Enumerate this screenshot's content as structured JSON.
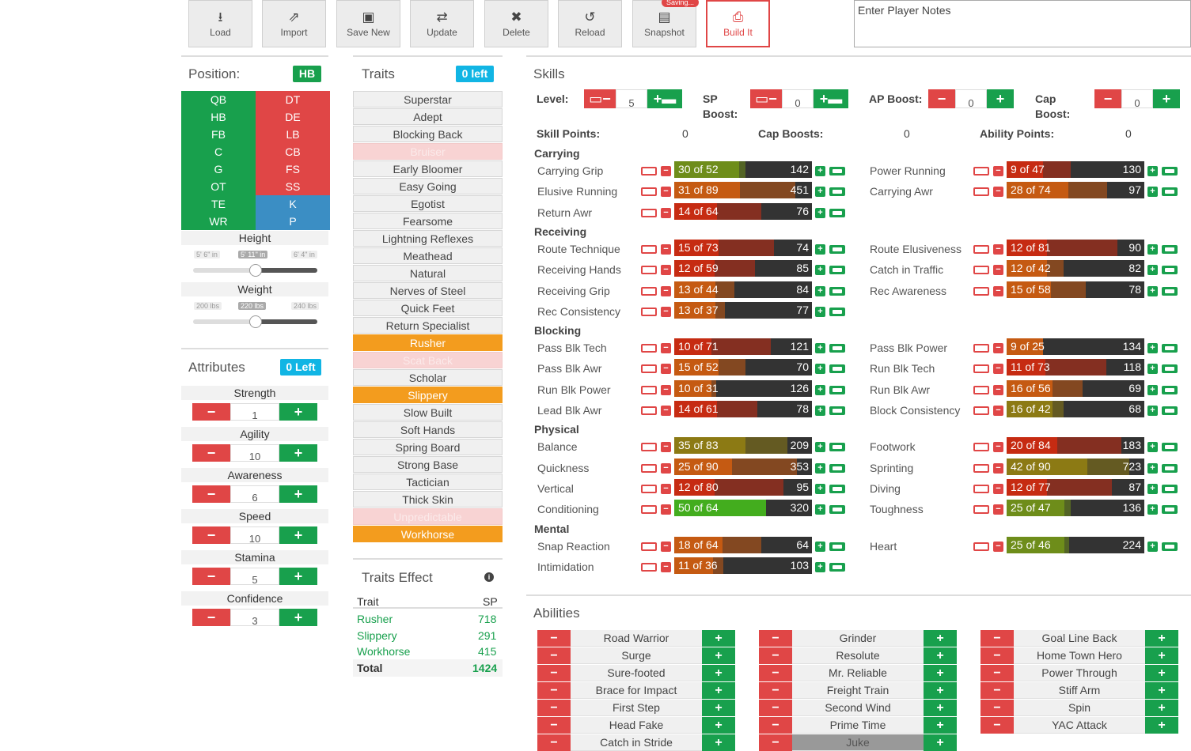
{
  "toolbar": [
    {
      "label": "Load",
      "icon": "download-icon",
      "glyph": "⭳"
    },
    {
      "label": "Import",
      "icon": "share-icon",
      "glyph": "⇗"
    },
    {
      "label": "Save New",
      "icon": "floppy-icon",
      "glyph": "▣"
    },
    {
      "label": "Update",
      "icon": "exchange-icon",
      "glyph": "⇄"
    },
    {
      "label": "Delete",
      "icon": "x-icon",
      "glyph": "✖"
    },
    {
      "label": "Reload",
      "icon": "undo-icon",
      "glyph": "↺"
    },
    {
      "label": "Snapshot",
      "icon": "image-file-icon",
      "glyph": "▤",
      "badge": "Saving..."
    },
    {
      "label": "Build It",
      "icon": "print-icon",
      "glyph": "⎙",
      "active": true
    }
  ],
  "notes": {
    "placeholder": "Enter Player Notes"
  },
  "position": {
    "title": "Position:",
    "selected": "HB",
    "offense": [
      "QB",
      "HB",
      "FB",
      "C",
      "G",
      "OT",
      "TE",
      "WR"
    ],
    "defense": [
      "DT",
      "DE",
      "LB",
      "CB",
      "FS",
      "SS",
      "K",
      "P"
    ],
    "defense_colors": [
      "red",
      "red",
      "red",
      "red",
      "red",
      "red",
      "blue",
      "blue"
    ]
  },
  "height": {
    "label": "Height",
    "ticks": [
      "5' 6\" in",
      "5' 11\" in",
      "6' 4\" in"
    ],
    "selected_index": 1,
    "value": 0.5
  },
  "weight": {
    "label": "Weight",
    "ticks": [
      "200 lbs",
      "220 lbs",
      "240 lbs"
    ],
    "selected_index": 1,
    "value": 0.5
  },
  "attributes": {
    "title": "Attributes",
    "badge": "0 Left",
    "items": [
      {
        "label": "Strength",
        "value": "1"
      },
      {
        "label": "Agility",
        "value": "10"
      },
      {
        "label": "Awareness",
        "value": "6"
      },
      {
        "label": "Speed",
        "value": "10"
      },
      {
        "label": "Stamina",
        "value": "5"
      },
      {
        "label": "Confidence",
        "value": "3"
      }
    ]
  },
  "traits": {
    "title": "Traits",
    "badge": "0 left",
    "items": [
      {
        "label": "Superstar",
        "state": "normal"
      },
      {
        "label": "Adept",
        "state": "normal"
      },
      {
        "label": "Blocking Back",
        "state": "normal"
      },
      {
        "label": "Bruiser",
        "state": "disabled"
      },
      {
        "label": "Early Bloomer",
        "state": "normal"
      },
      {
        "label": "Easy Going",
        "state": "normal"
      },
      {
        "label": "Egotist",
        "state": "normal"
      },
      {
        "label": "Fearsome",
        "state": "normal"
      },
      {
        "label": "Lightning Reflexes",
        "state": "normal"
      },
      {
        "label": "Meathead",
        "state": "normal"
      },
      {
        "label": "Natural",
        "state": "normal"
      },
      {
        "label": "Nerves of Steel",
        "state": "normal"
      },
      {
        "label": "Quick Feet",
        "state": "normal"
      },
      {
        "label": "Return Specialist",
        "state": "normal"
      },
      {
        "label": "Rusher",
        "state": "selected"
      },
      {
        "label": "Scat Back",
        "state": "disabled"
      },
      {
        "label": "Scholar",
        "state": "normal"
      },
      {
        "label": "Slippery",
        "state": "selected"
      },
      {
        "label": "Slow Built",
        "state": "normal"
      },
      {
        "label": "Soft Hands",
        "state": "normal"
      },
      {
        "label": "Spring Board",
        "state": "normal"
      },
      {
        "label": "Strong Base",
        "state": "normal"
      },
      {
        "label": "Tactician",
        "state": "normal"
      },
      {
        "label": "Thick Skin",
        "state": "normal"
      },
      {
        "label": "Unpredictable",
        "state": "disabled"
      },
      {
        "label": "Workhorse",
        "state": "selected"
      }
    ]
  },
  "traits_effect": {
    "title": "Traits Effect",
    "col_trait": "Trait",
    "col_sp": "SP",
    "rows": [
      {
        "trait": "Rusher",
        "sp": "718"
      },
      {
        "trait": "Slippery",
        "sp": "291"
      },
      {
        "trait": "Workhorse",
        "sp": "415"
      }
    ],
    "total_label": "Total",
    "total": "1424"
  },
  "skills": {
    "title": "Skills",
    "controls": [
      {
        "label": "Level:",
        "value": "5",
        "battery": true
      },
      {
        "label": "SP Boost:",
        "value": "0",
        "battery": true
      },
      {
        "label": "AP Boost:",
        "value": "0",
        "battery": false
      },
      {
        "label": "Cap Boost:",
        "value": "0",
        "battery": false
      }
    ],
    "summary": [
      {
        "label": "Skill Points:",
        "value": "0"
      },
      {
        "label": "Cap Boosts:",
        "value": "0"
      },
      {
        "label": "Ability Points:",
        "value": "0"
      }
    ],
    "groups": [
      {
        "name": "Carrying",
        "rows": [
          [
            {
              "name": "Carrying Grip",
              "level": 30,
              "max": 52,
              "value": "142"
            },
            {
              "name": "Power Running",
              "level": 9,
              "max": 47,
              "value": "130"
            }
          ],
          [
            {
              "name": "Elusive Running",
              "level": 31,
              "max": 89,
              "value": "451"
            },
            {
              "name": "Carrying Awr",
              "level": 28,
              "max": 74,
              "value": "97"
            }
          ],
          [
            {
              "name": "Return Awr",
              "level": 14,
              "max": 64,
              "value": "76"
            },
            null
          ]
        ]
      },
      {
        "name": "Receiving",
        "rows": [
          [
            {
              "name": "Route Technique",
              "level": 15,
              "max": 73,
              "value": "74"
            },
            {
              "name": "Route Elusiveness",
              "level": 12,
              "max": 81,
              "value": "90"
            }
          ],
          [
            {
              "name": "Receiving Hands",
              "level": 12,
              "max": 59,
              "value": "85"
            },
            {
              "name": "Catch in Traffic",
              "level": 12,
              "max": 42,
              "value": "82"
            }
          ],
          [
            {
              "name": "Receiving Grip",
              "level": 13,
              "max": 44,
              "value": "84"
            },
            {
              "name": "Rec Awareness",
              "level": 15,
              "max": 58,
              "value": "78"
            }
          ],
          [
            {
              "name": "Rec Consistency",
              "level": 13,
              "max": 37,
              "value": "77"
            },
            null
          ]
        ]
      },
      {
        "name": "Blocking",
        "rows": [
          [
            {
              "name": "Pass Blk Tech",
              "level": 10,
              "max": 71,
              "value": "121"
            },
            {
              "name": "Pass Blk Power",
              "level": 9,
              "max": 25,
              "value": "134"
            }
          ],
          [
            {
              "name": "Pass Blk Awr",
              "level": 15,
              "max": 52,
              "value": "70"
            },
            {
              "name": "Run Blk Tech",
              "level": 11,
              "max": 73,
              "value": "118"
            }
          ],
          [
            {
              "name": "Run Blk Power",
              "level": 10,
              "max": 31,
              "value": "126"
            },
            {
              "name": "Run Blk Awr",
              "level": 16,
              "max": 56,
              "value": "69"
            }
          ],
          [
            {
              "name": "Lead Blk Awr",
              "level": 14,
              "max": 61,
              "value": "78"
            },
            {
              "name": "Block Consistency",
              "level": 16,
              "max": 42,
              "value": "68"
            }
          ]
        ]
      },
      {
        "name": "Physical",
        "rows": [
          [
            {
              "name": "Balance",
              "level": 35,
              "max": 83,
              "value": "209"
            },
            {
              "name": "Footwork",
              "level": 20,
              "max": 84,
              "value": "183"
            }
          ],
          [
            {
              "name": "Quickness",
              "level": 25,
              "max": 90,
              "value": "353"
            },
            {
              "name": "Sprinting",
              "level": 42,
              "max": 90,
              "value": "723"
            }
          ],
          [
            {
              "name": "Vertical",
              "level": 12,
              "max": 80,
              "value": "95"
            },
            {
              "name": "Diving",
              "level": 12,
              "max": 77,
              "value": "87"
            }
          ],
          [
            {
              "name": "Conditioning",
              "level": 50,
              "max": 64,
              "value": "320"
            },
            {
              "name": "Toughness",
              "level": 25,
              "max": 47,
              "value": "136"
            }
          ]
        ]
      },
      {
        "name": "Mental",
        "rows": [
          [
            {
              "name": "Snap Reaction",
              "level": 18,
              "max": 64,
              "value": "64"
            },
            {
              "name": "Heart",
              "level": 25,
              "max": 46,
              "value": "224"
            }
          ],
          [
            {
              "name": "Intimidation",
              "level": 11,
              "max": 36,
              "value": "103"
            },
            null
          ]
        ]
      }
    ]
  },
  "abilities": {
    "title": "Abilities",
    "columns": [
      [
        {
          "name": "Road Warrior"
        },
        {
          "name": "Surge"
        },
        {
          "name": "Sure-footed"
        },
        {
          "name": "Brace for Impact"
        },
        {
          "name": "First Step"
        },
        {
          "name": "Head Fake"
        },
        {
          "name": "Catch in Stride"
        }
      ],
      [
        {
          "name": "Grinder"
        },
        {
          "name": "Resolute"
        },
        {
          "name": "Mr. Reliable"
        },
        {
          "name": "Freight Train"
        },
        {
          "name": "Second Wind"
        },
        {
          "name": "Prime Time"
        },
        {
          "name": "Juke",
          "selected": true
        }
      ],
      [
        {
          "name": "Goal Line Back"
        },
        {
          "name": "Home Town Hero"
        },
        {
          "name": "Power Through"
        },
        {
          "name": "Stiff Arm"
        },
        {
          "name": "Spin"
        },
        {
          "name": "YAC Attack"
        }
      ]
    ]
  },
  "colors": {
    "green": "#18a04d",
    "red": "#e04646",
    "blue": "#3b8ec4",
    "orange": "#f39c1e",
    "cyan": "#11b5e4"
  }
}
